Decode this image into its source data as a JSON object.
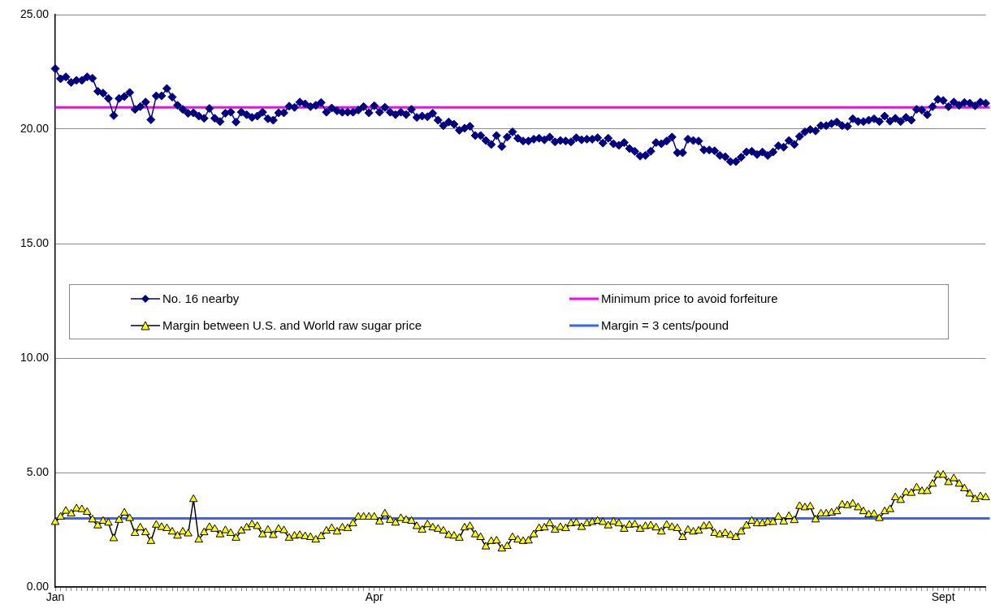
{
  "chart_data": {
    "type": "line",
    "categories": [
      "Jan",
      null,
      null,
      null,
      null,
      null,
      null,
      null,
      null,
      null,
      null,
      null,
      null,
      null,
      null,
      null,
      null,
      null,
      null,
      null,
      null,
      null,
      null,
      null,
      null,
      null,
      null,
      null,
      null,
      null,
      null,
      null,
      null,
      null,
      null,
      null,
      null,
      null,
      null,
      null,
      null,
      null,
      null,
      null,
      null,
      null,
      null,
      null,
      null,
      null,
      null,
      null,
      null,
      null,
      null,
      null,
      null,
      null,
      null,
      null,
      "Apr",
      null,
      null,
      null,
      null,
      null,
      null,
      null,
      null,
      null,
      null,
      null,
      null,
      null,
      null,
      null,
      null,
      null,
      null,
      null,
      null,
      null,
      null,
      null,
      null,
      null,
      null,
      null,
      null,
      null,
      null,
      null,
      null,
      null,
      null,
      null,
      null,
      null,
      null,
      null,
      null,
      null,
      null,
      null,
      null,
      null,
      null,
      null,
      null,
      null,
      null,
      null,
      null,
      null,
      null,
      null,
      null,
      null,
      null,
      null,
      null,
      null,
      null,
      null,
      null,
      null,
      null,
      null,
      null,
      null,
      null,
      null,
      null,
      null,
      null,
      null,
      null,
      null,
      null,
      null,
      null,
      null,
      null,
      null,
      null,
      null,
      null,
      null,
      null,
      null,
      null,
      null,
      null,
      null,
      null,
      null,
      null,
      null,
      null,
      null,
      null,
      null,
      null,
      null,
      null,
      null,
      null,
      "Sept",
      null,
      null,
      null,
      null,
      null,
      null,
      null,
      null
    ],
    "ylim": [
      0,
      25
    ],
    "yticks": [
      {
        "value": 0,
        "label": "0.00"
      },
      {
        "value": 5,
        "label": "5.00"
      },
      {
        "value": 10,
        "label": "10.00"
      },
      {
        "value": 15,
        "label": "15.00"
      },
      {
        "value": 20,
        "label": "20.00"
      },
      {
        "value": 25,
        "label": "25.00"
      }
    ],
    "grid": "y",
    "legend": "left",
    "line_style": "solid",
    "series": [
      {
        "name": "No. 16 nearby",
        "color": "#000080",
        "marker": "diamond",
        "values": [
          22.64,
          22.2,
          22.28,
          22.04,
          22.13,
          22.13,
          22.28,
          22.22,
          21.65,
          21.57,
          21.34,
          20.59,
          21.34,
          21.42,
          21.6,
          20.86,
          20.98,
          21.18,
          20.41,
          21.45,
          21.45,
          21.77,
          21.4,
          21.04,
          20.86,
          20.69,
          20.71,
          20.57,
          20.47,
          20.9,
          20.47,
          20.33,
          20.69,
          20.74,
          20.31,
          20.74,
          20.63,
          20.51,
          20.57,
          20.74,
          20.45,
          20.39,
          20.71,
          20.71,
          21.0,
          20.95,
          21.18,
          21.1,
          20.98,
          21.04,
          21.16,
          20.74,
          20.92,
          20.8,
          20.74,
          20.74,
          20.74,
          20.83,
          20.98,
          20.71,
          21.02,
          20.74,
          20.95,
          20.74,
          20.63,
          20.74,
          20.63,
          20.86,
          20.51,
          20.57,
          20.54,
          20.69,
          20.39,
          20.15,
          20.31,
          20.21,
          19.95,
          20.04,
          20.12,
          19.72,
          19.72,
          19.5,
          19.33,
          19.72,
          19.24,
          19.65,
          19.88,
          19.6,
          19.48,
          19.48,
          19.56,
          19.6,
          19.53,
          19.65,
          19.44,
          19.5,
          19.48,
          19.44,
          19.62,
          19.53,
          19.56,
          19.56,
          19.62,
          19.39,
          19.6,
          19.36,
          19.29,
          19.41,
          19.15,
          19.03,
          18.82,
          18.85,
          19.03,
          19.41,
          19.36,
          19.48,
          19.65,
          18.97,
          18.97,
          19.56,
          19.5,
          19.48,
          19.09,
          19.09,
          19.05,
          18.85,
          18.79,
          18.58,
          18.58,
          18.77,
          19.0,
          19.03,
          18.89,
          19.0,
          18.85,
          19.0,
          19.27,
          19.21,
          19.5,
          19.33,
          19.68,
          19.88,
          19.98,
          19.92,
          20.15,
          20.15,
          20.24,
          20.31,
          20.15,
          20.12,
          20.45,
          20.33,
          20.33,
          20.39,
          20.45,
          20.33,
          20.57,
          20.35,
          20.47,
          20.33,
          20.51,
          20.39,
          20.86,
          20.83,
          20.63,
          20.98,
          21.3,
          21.25,
          20.98,
          21.18,
          21.04,
          21.16,
          21.13,
          21.02,
          21.18,
          21.13
        ]
      },
      {
        "name": "Margin between U.S. and World raw sugar price",
        "color": "#ffff00",
        "marker": "triangle",
        "values": [
          2.83,
          3.06,
          3.32,
          3.2,
          3.42,
          3.39,
          3.27,
          2.94,
          2.68,
          2.88,
          2.8,
          2.12,
          2.92,
          3.24,
          3.0,
          2.35,
          2.59,
          2.38,
          2.0,
          2.71,
          2.61,
          2.56,
          2.41,
          2.23,
          2.41,
          2.33,
          3.83,
          2.06,
          2.38,
          2.61,
          2.53,
          2.29,
          2.47,
          2.35,
          2.14,
          2.45,
          2.59,
          2.73,
          2.65,
          2.29,
          2.49,
          2.26,
          2.53,
          2.47,
          2.14,
          2.23,
          2.26,
          2.21,
          2.17,
          2.06,
          2.21,
          2.45,
          2.56,
          2.41,
          2.59,
          2.56,
          2.77,
          3.06,
          3.06,
          3.06,
          3.06,
          2.85,
          3.2,
          2.92,
          2.8,
          3.0,
          2.92,
          2.88,
          2.65,
          2.49,
          2.73,
          2.59,
          2.53,
          2.45,
          2.26,
          2.23,
          2.14,
          2.59,
          2.65,
          2.29,
          2.17,
          1.76,
          2.0,
          2.02,
          1.67,
          1.78,
          2.17,
          2.06,
          2.0,
          2.02,
          2.29,
          2.56,
          2.59,
          2.77,
          2.49,
          2.61,
          2.56,
          2.77,
          2.8,
          2.61,
          2.77,
          2.83,
          2.88,
          2.83,
          2.68,
          2.85,
          2.77,
          2.53,
          2.71,
          2.73,
          2.53,
          2.65,
          2.68,
          2.59,
          2.41,
          2.71,
          2.61,
          2.56,
          2.17,
          2.49,
          2.41,
          2.45,
          2.65,
          2.68,
          2.35,
          2.29,
          2.35,
          2.26,
          2.17,
          2.41,
          2.68,
          2.88,
          2.77,
          2.77,
          2.83,
          2.83,
          3.06,
          2.85,
          3.09,
          2.91,
          3.53,
          3.47,
          3.51,
          2.94,
          3.2,
          3.2,
          3.24,
          3.3,
          3.59,
          3.56,
          3.63,
          3.47,
          3.3,
          3.16,
          3.18,
          3.0,
          3.3,
          3.39,
          3.91,
          3.79,
          4.13,
          4.1,
          4.34,
          4.18,
          4.18,
          4.5,
          4.89,
          4.89,
          4.57,
          4.74,
          4.5,
          4.3,
          4.07,
          3.83,
          3.95,
          3.91
        ]
      }
    ],
    "ref_lines": [
      {
        "axis": "y",
        "value": 20.95,
        "label": "Minimum price to avoid forfeiture",
        "color": "#ff00ff"
      },
      {
        "axis": "y",
        "value": 3,
        "label": "Margin = 3 cents/pound",
        "color": "#3366ff"
      }
    ]
  }
}
